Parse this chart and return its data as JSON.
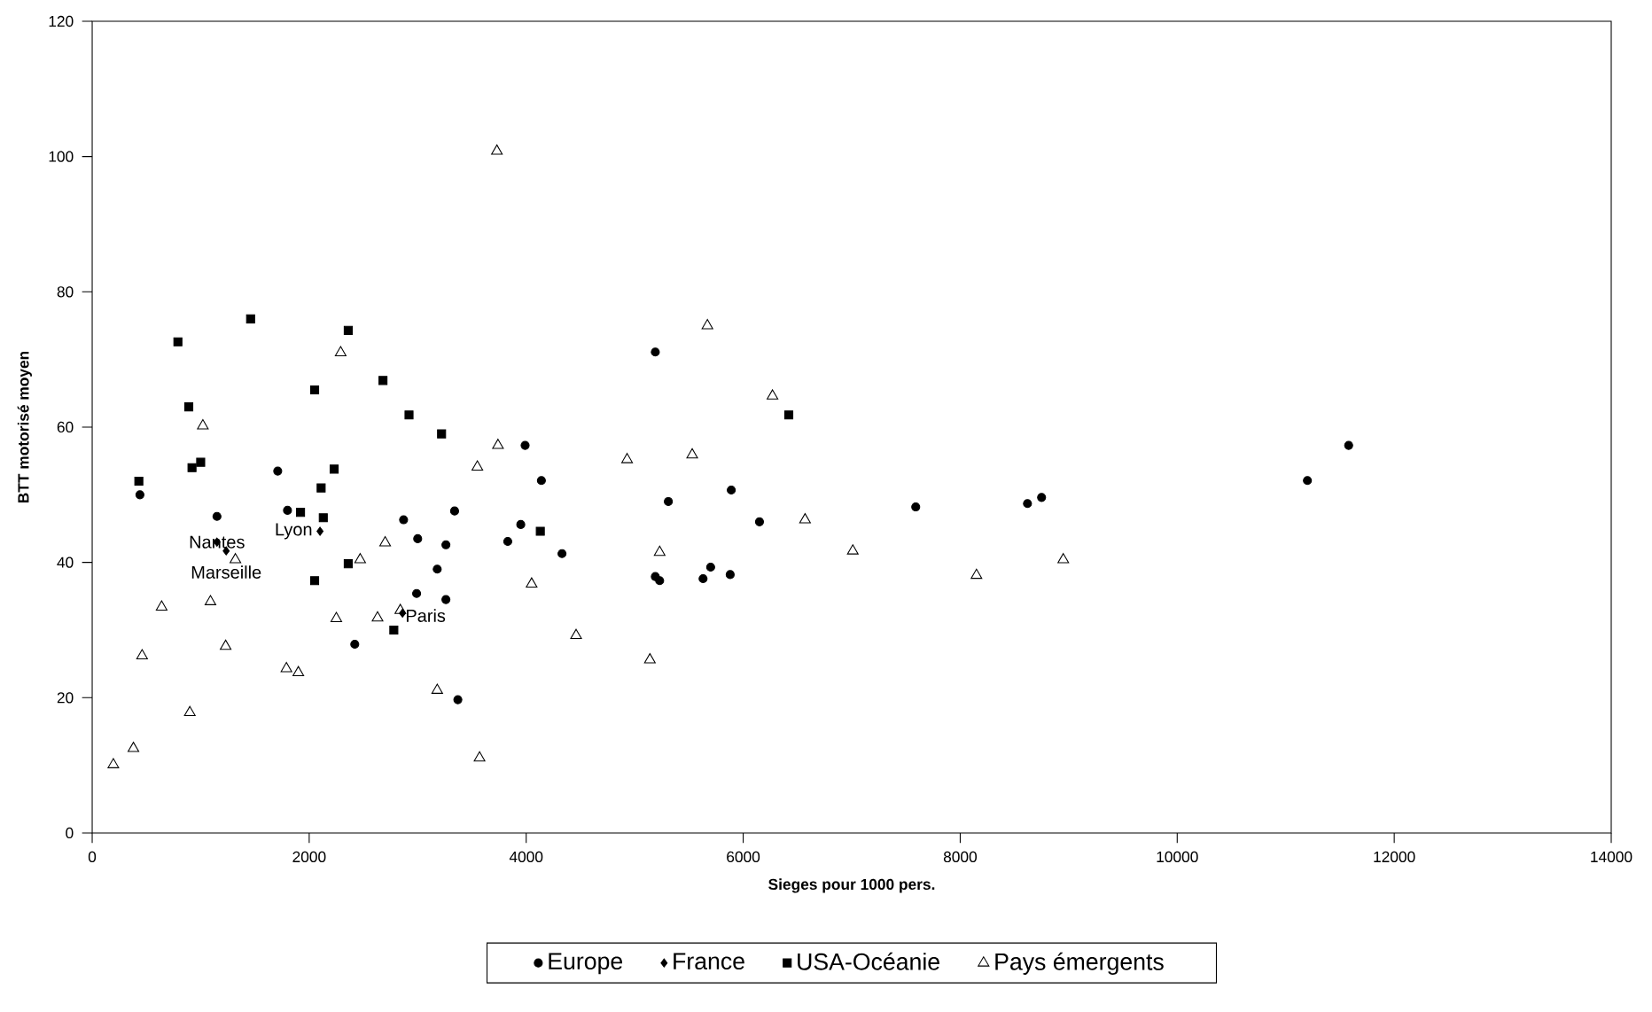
{
  "chart_data": {
    "type": "scatter",
    "xlabel": "Sieges pour 1000 pers.",
    "ylabel": "BTT motorisé moyen",
    "xlim": [
      0,
      14000
    ],
    "ylim": [
      0,
      120
    ],
    "xticks": [
      0,
      2000,
      4000,
      6000,
      8000,
      10000,
      12000,
      14000
    ],
    "yticks": [
      0,
      20,
      40,
      60,
      80,
      100,
      120
    ],
    "grid": false,
    "legend": "bottom",
    "series": [
      {
        "name": "Europe",
        "color": "#000000",
        "marker": "circle",
        "x": [
          440,
          1150,
          1710,
          1800,
          2420,
          2870,
          3000,
          2990,
          3180,
          3260,
          3260,
          3340,
          3370,
          3830,
          3950,
          3990,
          4330,
          4140,
          5190,
          5190,
          5230,
          5310,
          5630,
          5700,
          5890,
          5880,
          6150,
          7590,
          8620,
          8750,
          11200,
          11580
        ],
        "values": [
          50,
          46.8,
          53.5,
          47.7,
          27.9,
          46.3,
          43.5,
          35.4,
          39,
          42.6,
          34.5,
          47.6,
          19.7,
          43.1,
          45.6,
          57.3,
          41.3,
          52.1,
          71.1,
          37.9,
          37.3,
          49,
          37.6,
          39.3,
          50.7,
          38.2,
          46,
          48.2,
          48.7,
          49.6,
          52.1,
          57.3
        ]
      },
      {
        "name": "France",
        "color": "#000000",
        "marker": "diamond",
        "x": [
          1150,
          1235,
          2100,
          2860
        ],
        "values": [
          43.0,
          41.7,
          44.6,
          32.5
        ]
      },
      {
        "name": "USA-Océanie",
        "color": "#000000",
        "marker": "square",
        "x": [
          430,
          790,
          890,
          920,
          1000,
          1460,
          1920,
          2050,
          2050,
          2110,
          2130,
          2230,
          2360,
          2360,
          2680,
          2780,
          2920,
          3220,
          4130,
          6420
        ],
        "values": [
          52,
          72.6,
          63,
          54,
          54.8,
          76,
          47.4,
          37.3,
          65.5,
          51,
          46.6,
          53.8,
          74.3,
          39.8,
          66.9,
          30,
          61.8,
          59,
          44.6,
          61.8
        ]
      },
      {
        "name": "Pays émergents",
        "color": "#000000",
        "marker": "triangle",
        "x": [
          195,
          380,
          460,
          640,
          900,
          1020,
          1090,
          1230,
          1320,
          1790,
          1900,
          2250,
          2290,
          2470,
          2630,
          2700,
          2840,
          3180,
          3550,
          3570,
          3730,
          3740,
          4050,
          4460,
          4930,
          5140,
          5230,
          5530,
          5670,
          6270,
          6570,
          7010,
          8150,
          8950
        ],
        "values": [
          10.1,
          12.5,
          26.2,
          33.4,
          17.8,
          60.2,
          34.2,
          27.6,
          40.4,
          24.3,
          23.7,
          31.7,
          71,
          40.4,
          31.8,
          42.9,
          32.9,
          21.1,
          54.1,
          11.1,
          100.8,
          57.3,
          36.8,
          29.2,
          55.2,
          25.6,
          41.5,
          55.9,
          75,
          64.6,
          46.3,
          41.7,
          38.1,
          40.4
        ]
      }
    ],
    "annotations": [
      {
        "text": "Nantes",
        "x": 1150,
        "y": 43.0
      },
      {
        "text": "Lyon",
        "x": 2100,
        "y": 44.6
      },
      {
        "text": "Marseille",
        "x": 1235,
        "y": 41.7
      },
      {
        "text": "Paris",
        "x": 2860,
        "y": 32.5
      }
    ]
  }
}
